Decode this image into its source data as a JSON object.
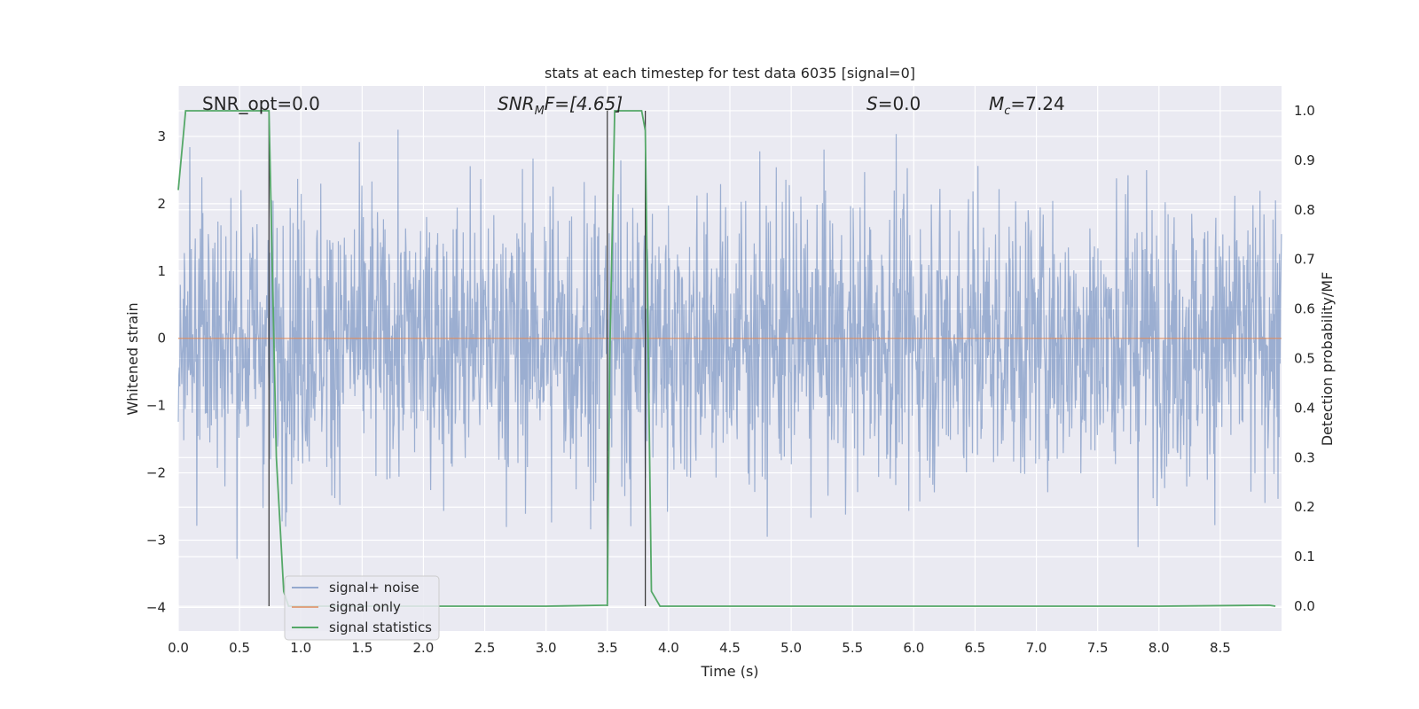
{
  "chart_data": {
    "type": "line",
    "title": "stats at each timestep for test data 6035 [signal=0]",
    "xlabel": "Time (s)",
    "ylabel_left": "Whitened strain",
    "ylabel_right": "Detection probability/MF",
    "xlim": [
      0.0,
      9.0
    ],
    "ylim_left": [
      -4.35,
      3.75
    ],
    "ylim_right": [
      -0.05,
      1.05
    ],
    "xticks": [
      "0.0",
      "0.5",
      "1.0",
      "1.5",
      "2.0",
      "2.5",
      "3.0",
      "3.5",
      "4.0",
      "4.5",
      "5.0",
      "5.5",
      "6.0",
      "6.5",
      "7.0",
      "7.5",
      "8.0",
      "8.5"
    ],
    "xtick_values": [
      0.0,
      0.5,
      1.0,
      1.5,
      2.0,
      2.5,
      3.0,
      3.5,
      4.0,
      4.5,
      5.0,
      5.5,
      6.0,
      6.5,
      7.0,
      7.5,
      8.0,
      8.5
    ],
    "yticks_left": [
      "3",
      "2",
      "1",
      "0",
      "−1",
      "−2",
      "−3",
      "−4"
    ],
    "ytick_values_left": [
      3,
      2,
      1,
      0,
      -1,
      -2,
      -3,
      -4
    ],
    "yticks_right": [
      "1.0",
      "0.9",
      "0.8",
      "0.7",
      "0.6",
      "0.5",
      "0.4",
      "0.3",
      "0.2",
      "0.1",
      "0.0"
    ],
    "ytick_values_right": [
      1.0,
      0.9,
      0.8,
      0.7,
      0.6,
      0.5,
      0.4,
      0.3,
      0.2,
      0.1,
      0.0
    ],
    "grid": true,
    "legend_position": "lower-left",
    "annotations": {
      "snr_opt": "SNR_opt=0.0",
      "snr_mf_main": "SNR",
      "snr_mf_sub": "M",
      "snr_mf_rest": "F=[4.65]",
      "s_italic": "S",
      "s_rest": "=0.0",
      "mc_main": "M",
      "mc_sub": "c",
      "mc_rest": "=7.24"
    },
    "vertical_markers_x": [
      0.74,
      3.5,
      3.81
    ],
    "series": [
      {
        "name": "signal+ noise",
        "color": "#4c72b0",
        "axis": "left",
        "description_envelope": {
          "typical_range": [
            -1.9,
            2.0
          ],
          "peak_range": [
            -3.4,
            3.1
          ]
        }
      },
      {
        "name": "signal only",
        "color": "#dd8452",
        "axis": "left",
        "x": [
          0.0,
          9.0
        ],
        "y": [
          0.0,
          0.0
        ]
      },
      {
        "name": "signal statistics",
        "color": "#55a868",
        "axis": "right",
        "x": [
          0.0,
          0.06,
          0.1,
          0.7,
          0.74,
          0.8,
          0.86,
          0.9,
          1.5,
          2.0,
          3.0,
          3.5,
          3.52,
          3.56,
          3.6,
          3.78,
          3.81,
          3.86,
          3.93,
          4.5,
          5.0,
          6.0,
          7.0,
          8.0,
          8.9,
          8.95
        ],
        "y": [
          0.84,
          1.0,
          1.0,
          1.0,
          1.0,
          0.3,
          0.03,
          0.0,
          0.0,
          0.0,
          0.0,
          0.002,
          0.5,
          1.0,
          1.0,
          1.0,
          0.96,
          0.03,
          0.0,
          0.0,
          0.0,
          0.0,
          0.0,
          0.0,
          0.002,
          0.0
        ]
      }
    ]
  },
  "colors": {
    "plot_background": "#eaeaf2",
    "grid": "#ffffff",
    "noise": "#4c72b0",
    "signal": "#dd8452",
    "stats": "#55a868",
    "marker": "#333333"
  }
}
